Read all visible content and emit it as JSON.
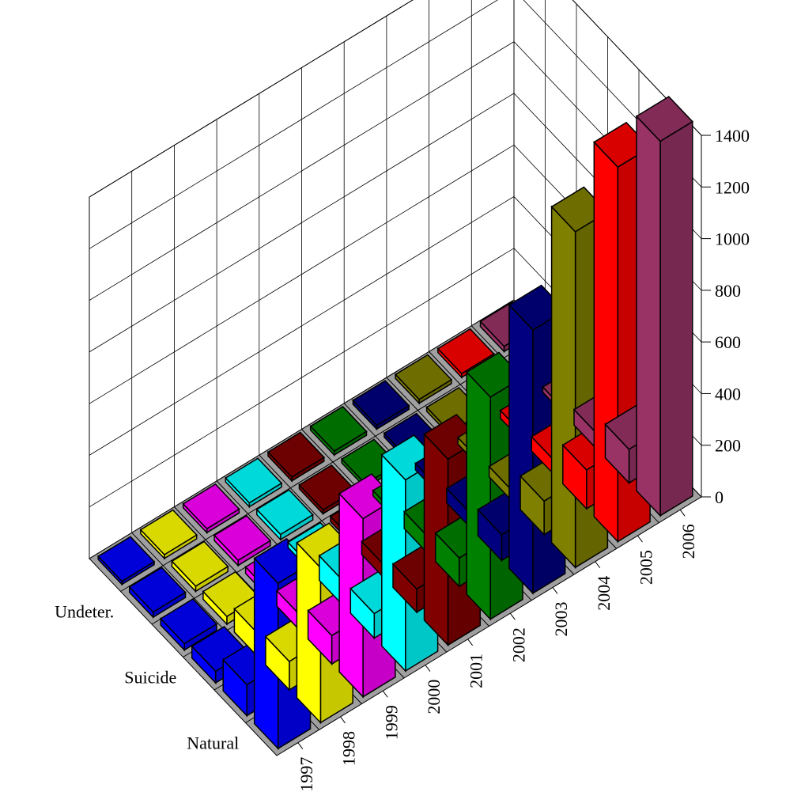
{
  "chart_data": {
    "type": "bar",
    "title": "",
    "years": [
      "1997",
      "1998",
      "1999",
      "2000",
      "2001",
      "2002",
      "2003",
      "2004",
      "2005",
      "2006"
    ],
    "categories": [
      "Natural",
      "",
      "Suicide",
      "",
      "Undeter.",
      ""
    ],
    "category_labels_shown": [
      "Natural",
      "Suicide",
      "Undeter."
    ],
    "zlim": [
      0,
      1400
    ],
    "zticks": [
      "0",
      "200",
      "400",
      "600",
      "800",
      "1000",
      "1200",
      "1400"
    ],
    "series": [
      {
        "values": [
          640,
          120,
          45,
          25,
          20,
          12
        ]
      },
      {
        "values": [
          600,
          110,
          90,
          30,
          20,
          15
        ]
      },
      {
        "values": [
          690,
          110,
          60,
          25,
          20,
          15
        ]
      },
      {
        "values": [
          740,
          95,
          95,
          20,
          20,
          15
        ]
      },
      {
        "values": [
          720,
          90,
          50,
          20,
          15,
          15
        ]
      },
      {
        "values": [
          860,
          110,
          65,
          20,
          15,
          15
        ]
      },
      {
        "values": [
          1020,
          100,
          55,
          25,
          15,
          15
        ]
      },
      {
        "values": [
          1300,
          130,
          40,
          25,
          15,
          15
        ]
      },
      {
        "values": [
          1450,
          150,
          55,
          30,
          15,
          15
        ]
      },
      {
        "values": [
          1450,
          130,
          60,
          20,
          15,
          20
        ]
      }
    ],
    "colors": [
      "#0000ff",
      "#ffff00",
      "#ff00ff",
      "#00ffff",
      "#800000",
      "#008000",
      "#000080",
      "#808000",
      "#ff0000",
      "#993366"
    ],
    "floor_color": "#a0a0a0",
    "grid": true
  }
}
